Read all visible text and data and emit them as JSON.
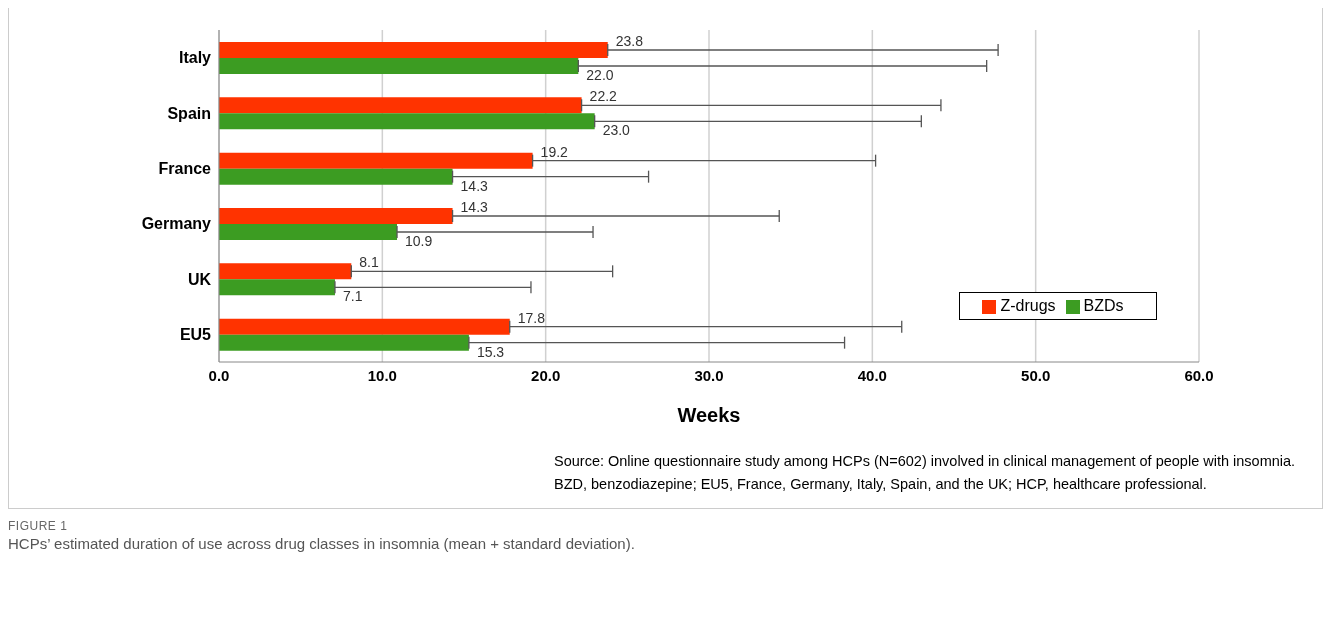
{
  "chart_data": {
    "type": "bar",
    "orientation": "horizontal",
    "xlabel": "Weeks",
    "categories": [
      "Italy",
      "Spain",
      "France",
      "Germany",
      "UK",
      "EU5"
    ],
    "series": [
      {
        "name": "Z-drugs",
        "color": "#ff3300",
        "values": [
          23.8,
          22.2,
          19.2,
          14.3,
          8.1,
          17.8
        ],
        "value_labels": [
          "23.8",
          "22.2",
          "19.2",
          "14.3",
          "8.1",
          "17.8"
        ],
        "errors": [
          [
            23.8,
            47.7
          ],
          [
            22.2,
            44.2
          ],
          [
            19.2,
            40.2
          ],
          [
            14.3,
            34.3
          ],
          [
            8.1,
            24.1
          ],
          [
            17.8,
            41.8
          ]
        ]
      },
      {
        "name": "BZDs",
        "color": "#3c9c22",
        "values": [
          22.0,
          23.0,
          14.3,
          10.9,
          7.1,
          15.3
        ],
        "value_labels": [
          "22.0",
          "23.0",
          "14.3",
          "10.9",
          "7.1",
          "15.3"
        ],
        "errors": [
          [
            22.0,
            47.0
          ],
          [
            23.0,
            43.0
          ],
          [
            14.3,
            26.3
          ],
          [
            10.9,
            22.9
          ],
          [
            7.1,
            19.1
          ],
          [
            15.3,
            38.3
          ]
        ]
      }
    ],
    "xlim": [
      0,
      60
    ],
    "xticks": [
      {
        "value": 0,
        "label": "0.0"
      },
      {
        "value": 10,
        "label": "10.0"
      },
      {
        "value": 20,
        "label": "20.0"
      },
      {
        "value": 30,
        "label": "30.0"
      },
      {
        "value": 40,
        "label": "40.0"
      },
      {
        "value": 50,
        "label": "50.0"
      },
      {
        "value": 60,
        "label": "60.0"
      }
    ],
    "grid": "x",
    "legend": "right",
    "annotations": [
      "Source: Online questionnaire study among HCPs (N=602) involved in clinical management of people with insomnia.",
      "BZD, benzodiazepine; EU5, France, Germany, Italy, Spain, and the UK; HCP, healthcare professional.",
      "FIGURE 1",
      "HCPs’ estimated duration of use across drug classes in insomnia (mean + standard deviation)."
    ]
  }
}
